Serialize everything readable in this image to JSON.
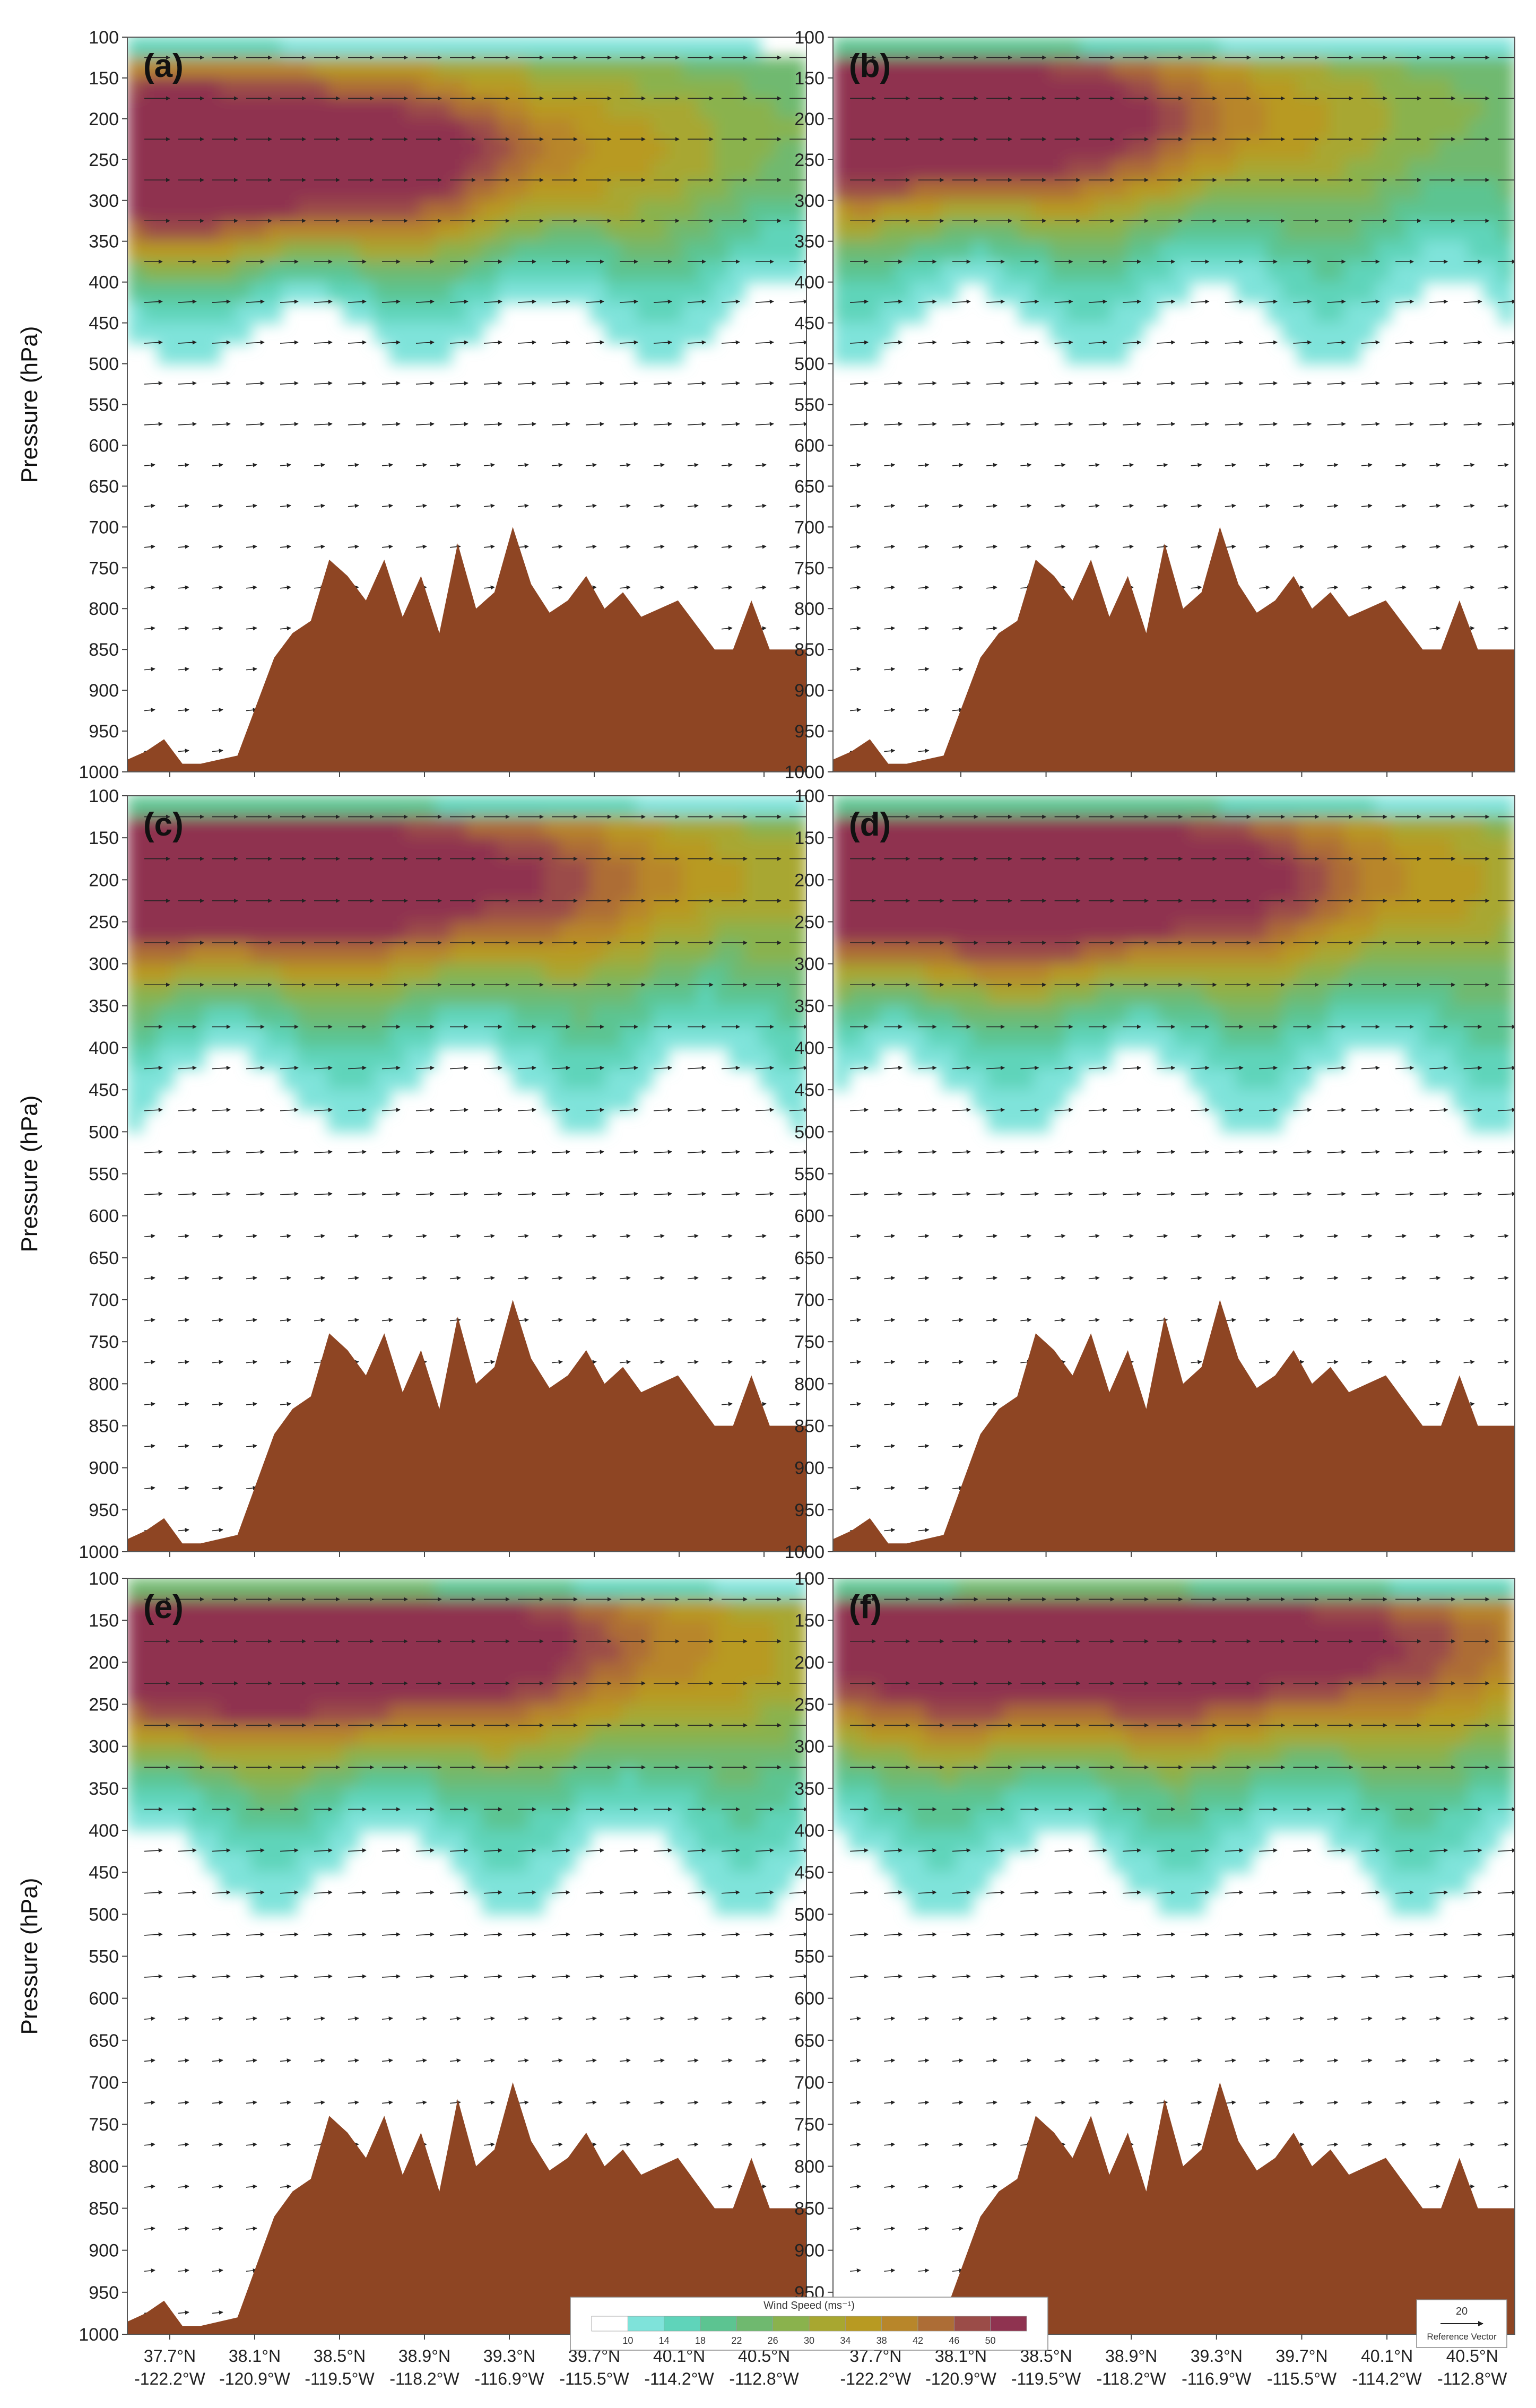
{
  "figure": {
    "ylabel": "Pressure (hPa)",
    "legend": {
      "title": "Wind Speed  (ms⁻¹)",
      "levels": [
        "10",
        "14",
        "18",
        "22",
        "26",
        "30",
        "34",
        "38",
        "42",
        "46",
        "50"
      ],
      "colors": [
        "#ffffff",
        "#7fe3da",
        "#5fd4ba",
        "#5cc491",
        "#6fb96f",
        "#8ab24d",
        "#a8a730",
        "#b89a22",
        "#b8862a",
        "#ad6d36",
        "#9b4c48",
        "#8f3350"
      ],
      "placement": "bottom-center"
    },
    "reference_vector": {
      "value": "20",
      "label": "Reference Vector"
    },
    "terrain_color": "#8e4523"
  },
  "chart_data": {
    "type": "cross-section contour",
    "y_axis": {
      "ticks": [
        100,
        150,
        200,
        250,
        300,
        350,
        400,
        450,
        500,
        550,
        600,
        650,
        700,
        750,
        800,
        850,
        900,
        950,
        1000
      ],
      "range": [
        1000,
        100
      ]
    },
    "x_axis": {
      "lat_ticks": [
        "37.7°N",
        "38.1°N",
        "38.5°N",
        "38.9°N",
        "39.3°N",
        "39.7°N",
        "40.1°N",
        "40.5°N"
      ],
      "lon_ticks": [
        "-122.2°W",
        "-120.9°W",
        "-119.5°W",
        "-118.2°W",
        "-116.9°W",
        "-115.5°W",
        "-114.2°W",
        "-112.8°W"
      ]
    },
    "terrain_pressure_hpa": [
      985,
      975,
      960,
      990,
      990,
      985,
      980,
      920,
      860,
      830,
      815,
      740,
      760,
      790,
      740,
      810,
      760,
      830,
      720,
      800,
      780,
      700,
      770,
      805,
      790,
      760,
      800,
      780,
      810,
      800,
      790,
      820,
      850,
      850,
      790,
      850,
      850,
      850
    ],
    "panels": [
      {
        "label": "(a)",
        "jet_core_pressure_hpa": 250,
        "jet_core_x": 0.08,
        "jet_max_speed": 50,
        "jet_length": 0.55,
        "low_level_threshold_pressure": 550
      },
      {
        "label": "(b)",
        "jet_core_pressure_hpa": 200,
        "jet_core_x": 0.1,
        "jet_max_speed": 46,
        "jet_length": 0.5,
        "low_level_threshold_pressure": 620
      },
      {
        "label": "(c)",
        "jet_core_pressure_hpa": 200,
        "jet_core_x": 0.2,
        "jet_max_speed": 42,
        "jet_length": 0.6,
        "low_level_threshold_pressure": 720
      },
      {
        "label": "(d)",
        "jet_core_pressure_hpa": 200,
        "jet_core_x": 0.25,
        "jet_max_speed": 48,
        "jet_length": 0.55,
        "low_level_threshold_pressure": 560
      },
      {
        "label": "(e)",
        "jet_core_pressure_hpa": 180,
        "jet_core_x": 0.2,
        "jet_max_speed": 48,
        "jet_length": 0.6,
        "low_level_threshold_pressure": 640
      },
      {
        "label": "(f)",
        "jet_core_pressure_hpa": 180,
        "jet_core_x": 0.35,
        "jet_max_speed": 42,
        "jet_length": 0.7,
        "low_level_threshold_pressure": 700
      }
    ]
  }
}
